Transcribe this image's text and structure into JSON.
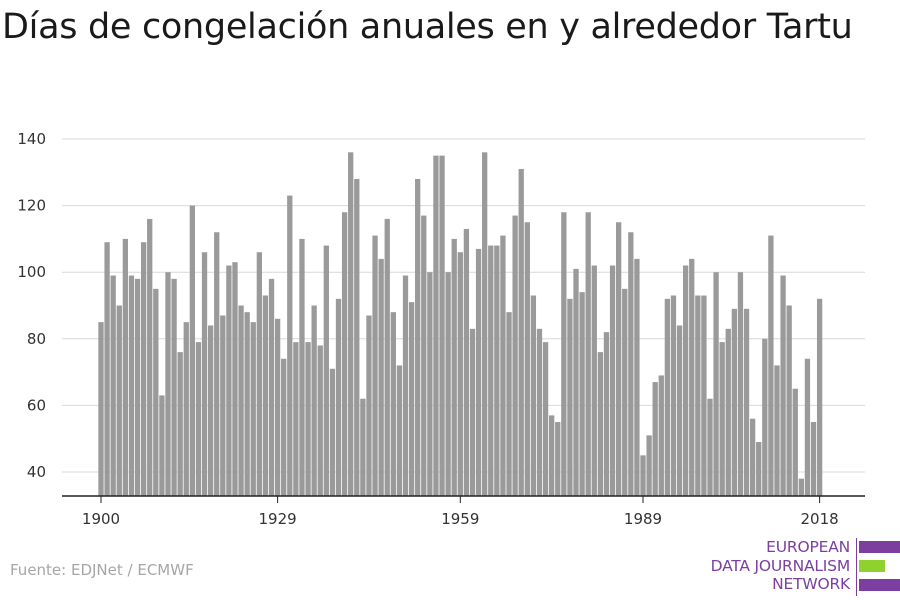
{
  "chart_data": {
    "type": "bar",
    "title": "Días de congelación anuales en y alrededor Tartu",
    "xlabel": "",
    "ylabel": "",
    "x_ticks": [
      "1900",
      "1929",
      "1959",
      "1989",
      "2018"
    ],
    "y_ticks": [
      40,
      60,
      80,
      100,
      120,
      140
    ],
    "ylim": [
      32,
      143
    ],
    "grid": true,
    "bar_color": "#9a9a9a",
    "years": [
      1900,
      1901,
      1902,
      1903,
      1904,
      1905,
      1906,
      1907,
      1908,
      1909,
      1910,
      1911,
      1912,
      1913,
      1914,
      1915,
      1916,
      1917,
      1918,
      1919,
      1920,
      1921,
      1922,
      1923,
      1924,
      1925,
      1926,
      1927,
      1928,
      1929,
      1930,
      1931,
      1932,
      1933,
      1934,
      1935,
      1936,
      1937,
      1938,
      1939,
      1940,
      1941,
      1942,
      1943,
      1944,
      1945,
      1946,
      1947,
      1948,
      1949,
      1950,
      1951,
      1952,
      1953,
      1954,
      1955,
      1956,
      1957,
      1958,
      1959,
      1960,
      1961,
      1962,
      1963,
      1964,
      1965,
      1966,
      1967,
      1968,
      1969,
      1970,
      1971,
      1972,
      1973,
      1974,
      1975,
      1976,
      1977,
      1978,
      1979,
      1980,
      1981,
      1982,
      1983,
      1984,
      1985,
      1986,
      1987,
      1988,
      1989,
      1990,
      1991,
      1992,
      1993,
      1994,
      1995,
      1996,
      1997,
      1998,
      1999,
      2000,
      2001,
      2002,
      2003,
      2004,
      2005,
      2006,
      2007,
      2008,
      2009,
      2010,
      2011,
      2012,
      2013,
      2014,
      2015,
      2016,
      2017,
      2018
    ],
    "values": [
      85,
      109,
      99,
      90,
      110,
      99,
      98,
      109,
      116,
      95,
      63,
      100,
      98,
      76,
      85,
      120,
      79,
      106,
      84,
      112,
      87,
      102,
      103,
      90,
      88,
      85,
      106,
      93,
      98,
      86,
      74,
      123,
      79,
      110,
      79,
      90,
      78,
      108,
      71,
      92,
      118,
      136,
      128,
      62,
      87,
      111,
      104,
      116,
      88,
      72,
      99,
      91,
      128,
      117,
      100,
      135,
      135,
      100,
      110,
      106,
      113,
      83,
      107,
      136,
      108,
      108,
      111,
      88,
      117,
      131,
      115,
      93,
      83,
      79,
      57,
      55,
      118,
      92,
      101,
      94,
      118,
      102,
      76,
      82,
      102,
      115,
      95,
      112,
      104,
      45,
      51,
      67,
      69,
      92,
      93,
      84,
      102,
      104,
      93,
      93,
      62,
      100,
      79,
      83,
      89,
      100,
      89,
      56,
      49,
      80,
      111,
      72,
      99,
      90,
      65,
      38,
      74,
      55,
      92
    ]
  },
  "source": "Fuente: EDJNet / ECMWF",
  "logo": {
    "line1": "EUROPEAN",
    "line2": "DATA JOURNALISM",
    "line3": "NETWORK",
    "color_purple": "#7b3fa0",
    "color_green": "#8fd12f"
  }
}
